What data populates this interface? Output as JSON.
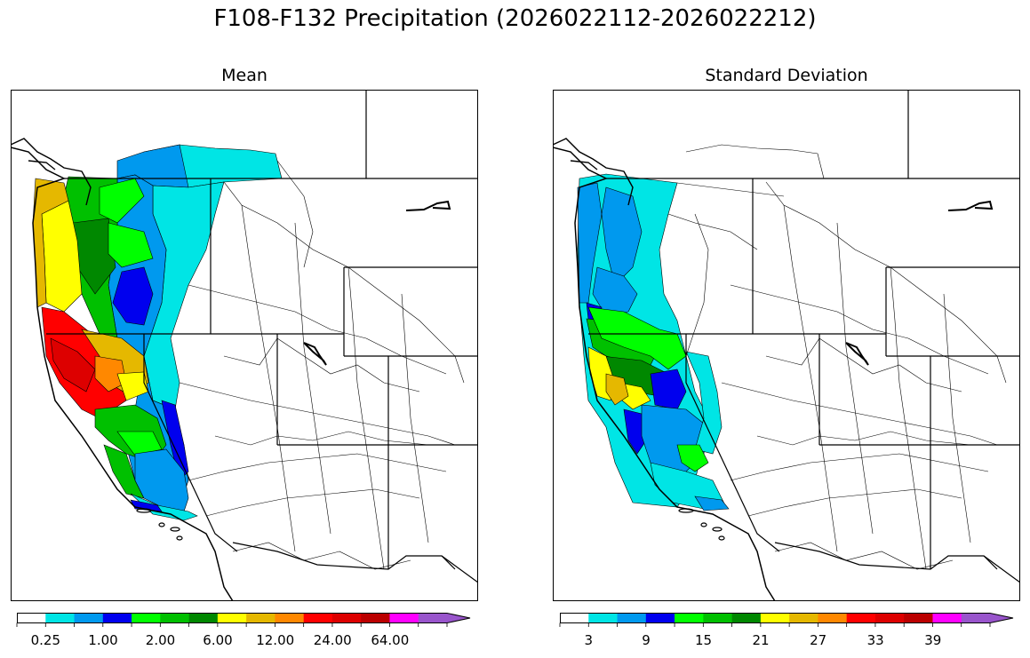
{
  "figure": {
    "title": "F108-F132 Precipitation (2026022112-2026022212)"
  },
  "panels": [
    {
      "id": "mean",
      "title": "Mean",
      "colorbar": {
        "tick_labels": [
          "0.25",
          "1.00",
          "2.00",
          "6.00",
          "12.00",
          "24.00",
          "64.00"
        ]
      }
    },
    {
      "id": "std",
      "title": "Standard Deviation",
      "colorbar": {
        "tick_labels": [
          "3",
          "9",
          "15",
          "21",
          "27",
          "33",
          "39"
        ]
      }
    }
  ],
  "colors": {
    "palette": [
      "#ffffff",
      "#00e5e5",
      "#0099ee",
      "#0000ee",
      "#00ff00",
      "#00c000",
      "#008800",
      "#ffff00",
      "#e5b800",
      "#ff8800",
      "#ff0000",
      "#dd0000",
      "#bb0000",
      "#ff00ff",
      "#9955cc"
    ],
    "outline": "#000000"
  }
}
